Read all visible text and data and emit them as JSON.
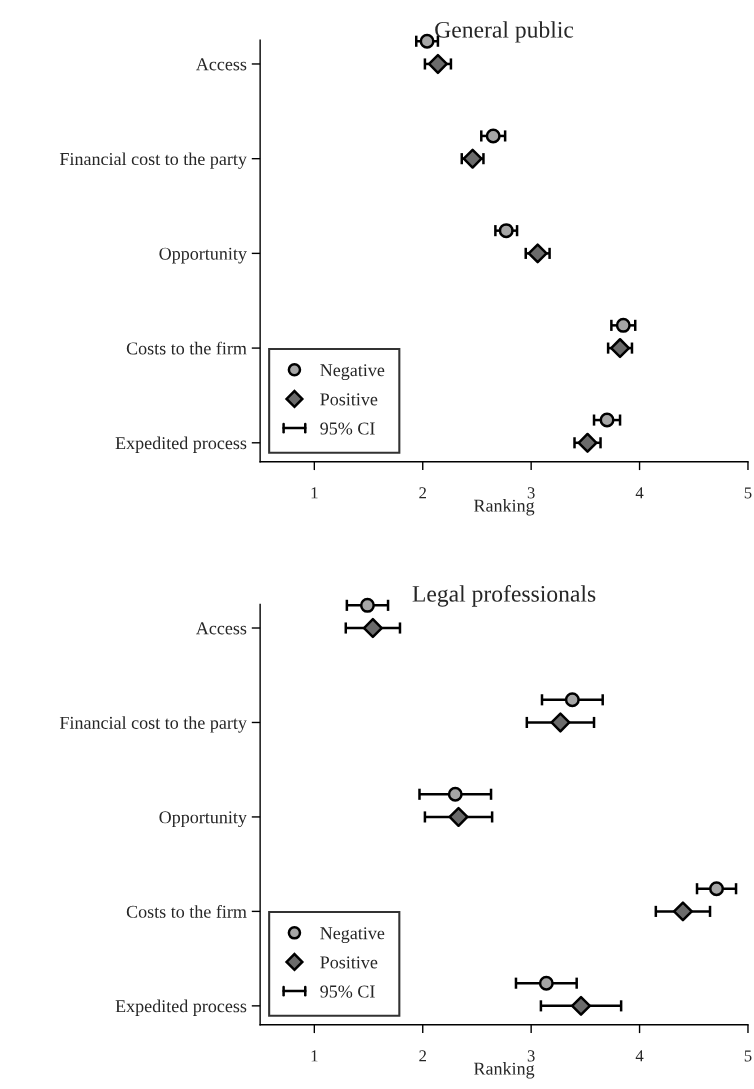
{
  "chart_data": [
    {
      "type": "scatter",
      "orientation": "horizontal",
      "title": "General public",
      "xlabel": "Ranking",
      "categories": [
        "Access",
        "Financial cost to the party",
        "Opportunity",
        "Costs to the firm",
        "Expedited process"
      ],
      "xlim": [
        0.5,
        5
      ],
      "xticks": [
        1,
        2,
        3,
        4,
        5
      ],
      "grid": false,
      "legend": "bottom left",
      "annotations": [
        "95% CI"
      ],
      "series": [
        {
          "name": "Negative",
          "color": "#a6a6a6",
          "marker": "circle",
          "values": [
            2.04,
            2.65,
            2.77,
            3.85,
            3.7
          ],
          "errors": [
            0.1,
            0.11,
            0.1,
            0.11,
            0.12
          ]
        },
        {
          "name": "Positive",
          "color": "#6b6b6b",
          "marker": "diamond",
          "values": [
            2.14,
            2.46,
            3.06,
            3.82,
            3.52
          ],
          "errors": [
            0.12,
            0.1,
            0.11,
            0.11,
            0.12
          ]
        }
      ]
    },
    {
      "type": "scatter",
      "orientation": "horizontal",
      "title": "Legal professionals",
      "xlabel": "Ranking",
      "categories": [
        "Access",
        "Financial cost to the party",
        "Opportunity",
        "Costs to the firm",
        "Expedited process"
      ],
      "xlim": [
        0.5,
        5
      ],
      "xticks": [
        1,
        2,
        3,
        4,
        5
      ],
      "grid": false,
      "legend": "bottom left",
      "annotations": [
        "95% CI"
      ],
      "series": [
        {
          "name": "Negative",
          "color": "#a6a6a6",
          "marker": "circle",
          "values": [
            1.49,
            3.38,
            2.3,
            4.71,
            3.14
          ],
          "errors": [
            0.19,
            0.28,
            0.33,
            0.18,
            0.28
          ]
        },
        {
          "name": "Positive",
          "color": "#6b6b6b",
          "marker": "diamond",
          "values": [
            1.54,
            3.27,
            2.33,
            4.4,
            3.46
          ],
          "errors": [
            0.25,
            0.31,
            0.31,
            0.25,
            0.37
          ]
        }
      ]
    }
  ]
}
